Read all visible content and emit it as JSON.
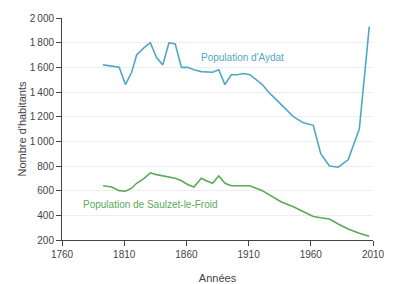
{
  "chart_data": {
    "type": "line",
    "x": [
      1793,
      1800,
      1806,
      1811,
      1816,
      1820,
      1826,
      1831,
      1836,
      1841,
      1846,
      1851,
      1856,
      1861,
      1866,
      1872,
      1876,
      1881,
      1886,
      1891,
      1896,
      1901,
      1906,
      1911,
      1921,
      1926,
      1931,
      1936,
      1946,
      1954,
      1962,
      1968,
      1975,
      1982,
      1990,
      1999,
      2007
    ],
    "series": [
      {
        "name": "Population d'Aydat",
        "color": "#4fa8c5",
        "values": [
          1620,
          1610,
          1600,
          1460,
          1560,
          1700,
          1760,
          1800,
          1680,
          1620,
          1800,
          1790,
          1600,
          1600,
          1580,
          1565,
          1565,
          1560,
          1580,
          1460,
          1540,
          1540,
          1550,
          1540,
          1460,
          1400,
          1350,
          1300,
          1200,
          1150,
          1130,
          900,
          800,
          790,
          850,
          1100,
          1930
        ]
      },
      {
        "name": "Population de Saulzet-le-Froid",
        "color": "#5aaa5a",
        "values": [
          640,
          630,
          600,
          595,
          620,
          660,
          700,
          745,
          730,
          720,
          710,
          700,
          680,
          650,
          630,
          700,
          680,
          660,
          720,
          660,
          640,
          640,
          635,
          640,
          600,
          570,
          540,
          510,
          470,
          430,
          390,
          380,
          370,
          330,
          290,
          255,
          230
        ]
      }
    ],
    "annotations": [
      {
        "text": "Population d'Aydat",
        "x": 1870,
        "y": 1680,
        "color": "#4fa8c5"
      },
      {
        "text": "Population de Saulzet-le-Froid",
        "x": 1775,
        "y": 490,
        "color": "#5aaa5a"
      }
    ],
    "xlabel": "Années",
    "ylabel": "Nombre d'habitants",
    "xlim": [
      1760,
      2010
    ],
    "xticks": [
      1760,
      1810,
      1860,
      1910,
      1960,
      2010
    ],
    "ylim": [
      200,
      2000
    ],
    "yticks": [
      200,
      400,
      600,
      800,
      {
        "value": 1000,
        "label": "1 000"
      },
      {
        "value": 1200,
        "label": "1 200"
      },
      {
        "value": 1400,
        "label": "1 400"
      },
      {
        "value": 1600,
        "label": "1 600"
      },
      {
        "value": 1800,
        "label": "1 800"
      },
      {
        "value": 2000,
        "label": "2 000"
      }
    ],
    "grid": true
  }
}
